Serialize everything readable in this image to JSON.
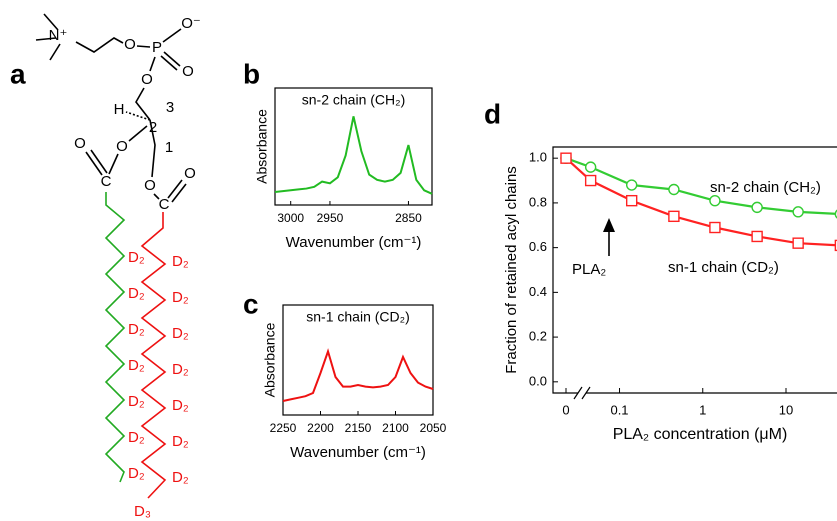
{
  "structure": {
    "letter": "a",
    "labels": [
      "N⁺",
      "O",
      "P",
      "O⁻",
      "O",
      "O",
      "H",
      "3",
      "2",
      "1",
      "O",
      "O",
      "O",
      "C",
      "O",
      "C",
      "D₂",
      "D₂",
      "D₂",
      "D₂",
      "D₂",
      "D₂",
      "D₂",
      "D₂",
      "D₂",
      "D₂",
      "D₂",
      "D₂",
      "D₂",
      "D₂",
      "D₃"
    ]
  },
  "chart_data": [
    {
      "type": "line",
      "letter": "b",
      "title": "sn-2 chain (CH₂)",
      "y_label": "Absorbance",
      "x_label": "Wavenumber (cm⁻¹)",
      "xlim": [
        3020,
        2820
      ],
      "xticks": [
        3000,
        2950,
        2850
      ],
      "ylim": [
        0,
        1
      ],
      "series": [
        {
          "color": "#22bb22",
          "x": [
            3020,
            3010,
            3000,
            2990,
            2980,
            2970,
            2960,
            2950,
            2940,
            2930,
            2920,
            2910,
            2900,
            2890,
            2880,
            2870,
            2860,
            2850,
            2840,
            2830,
            2820
          ],
          "values": [
            0.08,
            0.09,
            0.1,
            0.11,
            0.12,
            0.14,
            0.2,
            0.18,
            0.25,
            0.5,
            0.95,
            0.55,
            0.28,
            0.22,
            0.2,
            0.22,
            0.3,
            0.62,
            0.22,
            0.1,
            0.06
          ]
        }
      ]
    },
    {
      "type": "line",
      "letter": "c",
      "title": "sn-1 chain (CD₂)",
      "y_label": "Absorbance",
      "x_label": "Wavenumber (cm⁻¹)",
      "xlim": [
        2250,
        2050
      ],
      "xticks": [
        2250,
        2200,
        2150,
        2100,
        2050
      ],
      "ylim": [
        0,
        1
      ],
      "series": [
        {
          "color": "#ee1111",
          "x": [
            2250,
            2240,
            2230,
            2220,
            2210,
            2200,
            2190,
            2180,
            2170,
            2160,
            2150,
            2140,
            2130,
            2120,
            2110,
            2100,
            2090,
            2080,
            2070,
            2060,
            2050
          ],
          "values": [
            0.1,
            0.12,
            0.14,
            0.16,
            0.2,
            0.45,
            0.72,
            0.4,
            0.28,
            0.28,
            0.3,
            0.28,
            0.27,
            0.28,
            0.3,
            0.4,
            0.65,
            0.45,
            0.33,
            0.28,
            0.25
          ]
        }
      ]
    },
    {
      "type": "scatter-line",
      "letter": "d",
      "y_label": "Fraction of retained acyl chains",
      "x_label": "PLA₂ concentration (μM)",
      "x_scale": "log",
      "axis_break": true,
      "xlim": [
        0.03,
        41
      ],
      "xticks": [
        0,
        0.1,
        1,
        10
      ],
      "ylim": [
        -0.05,
        1.05
      ],
      "yticks": [
        {
          "value": 0,
          "label": "0.0"
        },
        0.2,
        0.4,
        0.6,
        0.8,
        {
          "value": 1,
          "label": "1.0"
        }
      ],
      "x": [
        0,
        0.045,
        0.14,
        0.45,
        1.4,
        4.5,
        14,
        45
      ],
      "series": [
        {
          "name": "sn-2 chain (CH₂)",
          "color": "#33cc33",
          "marker": "circle",
          "values": [
            1.0,
            0.96,
            0.88,
            0.86,
            0.81,
            0.78,
            0.76,
            0.75
          ]
        },
        {
          "name": "sn-1 chain (CD₂)",
          "color": "#ff2222",
          "marker": "square",
          "values": [
            1.0,
            0.9,
            0.81,
            0.74,
            0.69,
            0.65,
            0.62,
            0.61
          ]
        }
      ],
      "annotation": "PLA₂"
    }
  ]
}
